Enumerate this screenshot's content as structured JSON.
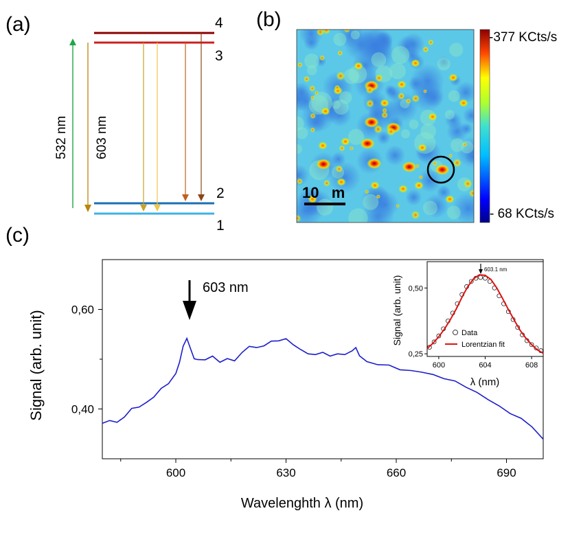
{
  "panels": {
    "a": {
      "label": "(a)",
      "level_labels": [
        "4",
        "3",
        "2",
        "1"
      ],
      "excitation_label": "532 nm",
      "emission_label": "603 nm"
    },
    "b": {
      "label": "(b)",
      "scale_bar_label": "10   m",
      "colorbar_max_label": "-377 KCts/s",
      "colorbar_min_label": "- 68 KCts/s"
    },
    "c": {
      "label": "(c)",
      "peak_annotation": "603 nm"
    }
  },
  "colors": {
    "excitation": "#1fa64a",
    "level_upper": "#cc1f1f",
    "level_upper_top": "#8b0000",
    "level_lower": "#1a6fb5",
    "level_lower_2": "#3fb0e8",
    "spectrum": "#1c1ccc",
    "fit": "#e01010"
  },
  "chart_data": [
    {
      "type": "line",
      "xlabel": "Wavelenghth λ (nm)",
      "ylabel": "Signal (arb. unit)",
      "xlim": [
        580,
        700
      ],
      "ylim": [
        0.3,
        0.7
      ],
      "xticks": [
        600,
        630,
        660,
        690
      ],
      "xtick_labels": [
        "600",
        "630",
        "660",
        "690"
      ],
      "yticks": [
        0.4,
        0.6
      ],
      "ytick_labels": [
        "0,40",
        "0,60"
      ],
      "series": [
        {
          "x": [
            580,
            582,
            584,
            586,
            588,
            590,
            592,
            594,
            596,
            598,
            600,
            601,
            602,
            603,
            604,
            605,
            606,
            608,
            610,
            612,
            614,
            616,
            618,
            620,
            622,
            624,
            626,
            628,
            630,
            632,
            634,
            636,
            638,
            640,
            642,
            644,
            646,
            648,
            649,
            650,
            652,
            655,
            658,
            661,
            664,
            667,
            670,
            673,
            676,
            679,
            682,
            685,
            688,
            691,
            694,
            697,
            700
          ],
          "values": [
            0.37,
            0.378,
            0.372,
            0.385,
            0.4,
            0.405,
            0.412,
            0.425,
            0.44,
            0.452,
            0.47,
            0.495,
            0.525,
            0.543,
            0.52,
            0.502,
            0.498,
            0.5,
            0.505,
            0.495,
            0.5,
            0.498,
            0.512,
            0.527,
            0.522,
            0.528,
            0.535,
            0.538,
            0.54,
            0.53,
            0.518,
            0.512,
            0.508,
            0.515,
            0.505,
            0.512,
            0.508,
            0.518,
            0.522,
            0.508,
            0.494,
            0.49,
            0.487,
            0.48,
            0.476,
            0.475,
            0.468,
            0.462,
            0.455,
            0.445,
            0.432,
            0.42,
            0.405,
            0.392,
            0.38,
            0.365,
            0.338
          ]
        }
      ]
    },
    {
      "type": "scatter",
      "xlabel": "λ (nm)",
      "ylabel": "Signal (arb. unit)",
      "xlim": [
        599,
        609
      ],
      "ylim": [
        0.24,
        0.6
      ],
      "xticks": [
        600,
        604,
        608
      ],
      "xtick_labels": [
        "600",
        "604",
        "608"
      ],
      "yticks": [
        0.25,
        0.5
      ],
      "ytick_labels": [
        "0,25",
        "0,50"
      ],
      "annotation": "603.1 nm",
      "legend": [
        "Data",
        "Lorentzian fit"
      ],
      "legend_position": "bottom-center",
      "series": [
        {
          "name": "Data",
          "x": [
            599.2,
            599.6,
            600.0,
            600.4,
            600.8,
            601.2,
            601.6,
            602.0,
            602.4,
            602.8,
            603.2,
            603.6,
            604.0,
            604.4,
            604.8,
            605.2,
            605.6,
            606.0,
            606.4,
            606.8,
            607.2,
            607.6,
            608.0,
            608.4,
            608.8
          ],
          "values": [
            0.275,
            0.295,
            0.318,
            0.345,
            0.375,
            0.405,
            0.44,
            0.475,
            0.505,
            0.525,
            0.537,
            0.54,
            0.537,
            0.525,
            0.5,
            0.47,
            0.44,
            0.41,
            0.38,
            0.35,
            0.322,
            0.3,
            0.285,
            0.272,
            0.262
          ]
        },
        {
          "name": "Lorentzian fit",
          "x": [
            599.0,
            599.5,
            600.0,
            600.5,
            601.0,
            601.5,
            602.0,
            602.5,
            603.0,
            603.5,
            604.0,
            604.5,
            605.0,
            605.5,
            606.0,
            606.5,
            607.0,
            607.5,
            608.0,
            608.5,
            609.0
          ],
          "values": [
            0.27,
            0.29,
            0.315,
            0.345,
            0.38,
            0.42,
            0.465,
            0.505,
            0.535,
            0.55,
            0.548,
            0.532,
            0.5,
            0.46,
            0.418,
            0.378,
            0.34,
            0.31,
            0.285,
            0.265,
            0.252
          ]
        }
      ]
    }
  ]
}
